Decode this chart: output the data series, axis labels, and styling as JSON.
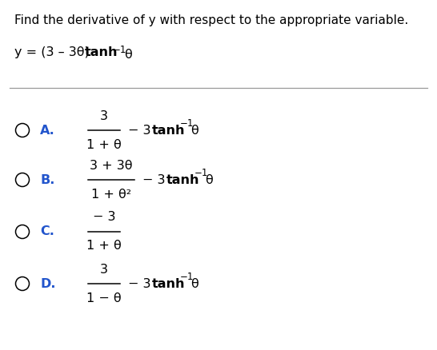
{
  "background_color": "#ffffff",
  "title_text": "Find the derivative of y with respect to the appropriate variable.",
  "title_color": "#000000",
  "text_color": "#000000",
  "label_color": "#2255cc",
  "circle_color": "#000000",
  "sep_line_color": "#999999",
  "title_fontsize": 11.0,
  "body_fontsize": 11.5,
  "label_fontsize": 11.5,
  "options": [
    {
      "label": "A.",
      "numerator": "3",
      "denominator": "1 + θ",
      "has_suffix": true
    },
    {
      "label": "B.",
      "numerator": "3 + 3θ",
      "denominator": "1 + θ²",
      "has_suffix": true
    },
    {
      "label": "C.",
      "numerator": "− 3",
      "denominator": "1 + θ",
      "has_suffix": false
    },
    {
      "label": "D.",
      "numerator": "3",
      "denominator": "1 − θ",
      "has_suffix": true
    }
  ]
}
